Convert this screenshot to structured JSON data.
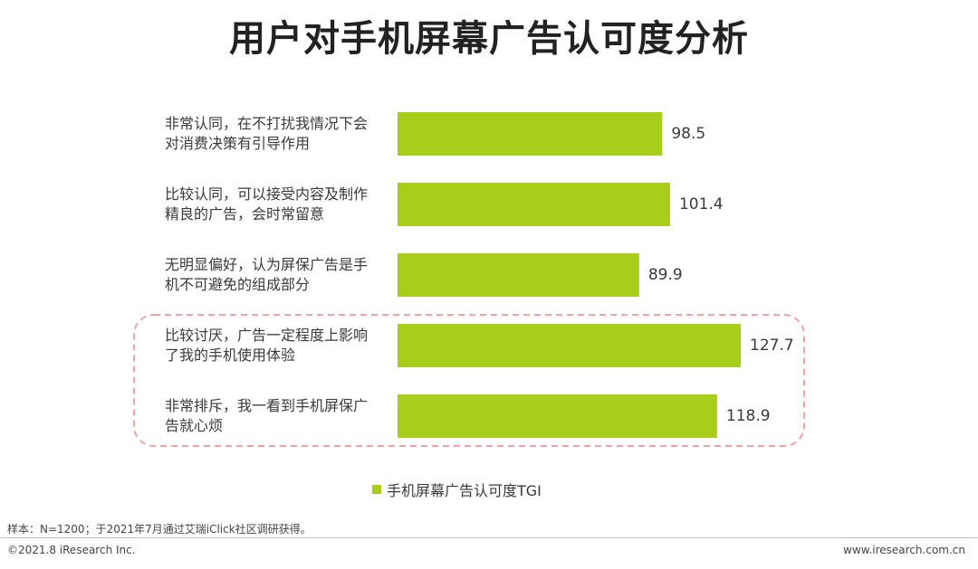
{
  "title": "用户对手机屏幕广告认可度分析",
  "chart_data": {
    "type": "bar",
    "orientation": "horizontal",
    "categories": [
      "非常认同，在不打扰我情况下会对消费决策有引导作用",
      "比较认同，可以接受内容及制作精良的广告，会时常留意",
      "无明显偏好，认为屏保广告是手机不可避免的组成部分",
      "比较讨厌，广告一定程度上影响了我的手机使用体验",
      "非常排斥，我一看到手机屏保广告就心烦"
    ],
    "category_lines": [
      [
        "非常认同，在不打扰我情况下会",
        "对消费决策有引导作用"
      ],
      [
        "比较认同，可以接受内容及制作",
        "精良的广告，会时常留意"
      ],
      [
        "无明显偏好，认为屏保广告是手",
        "机不可避免的组成部分"
      ],
      [
        "比较讨厌，广告一定程度上影响",
        "了我的手机使用体验"
      ],
      [
        "非常排斥，我一看到手机屏保广",
        "告就心烦"
      ]
    ],
    "series": [
      {
        "name": "手机屏幕广告认可度TGI",
        "values": [
          98.5,
          101.4,
          89.9,
          127.7,
          118.9
        ]
      }
    ],
    "value_labels": [
      "98.5",
      "101.4",
      "89.9",
      "127.7",
      "118.9"
    ],
    "xlim": [
      0,
      135
    ],
    "grid": false,
    "legend_position": "bottom",
    "bar_color": "#a8cd1b",
    "highlight_color": "#f0a3a3",
    "highlighted_indices": [
      3,
      4
    ]
  },
  "footer": {
    "note": "样本：N=1200；于2021年7月通过艾瑞iClick社区调研获得。",
    "copyright": "©2021.8 iResearch Inc.",
    "website": "www.iresearch.com.cn"
  }
}
